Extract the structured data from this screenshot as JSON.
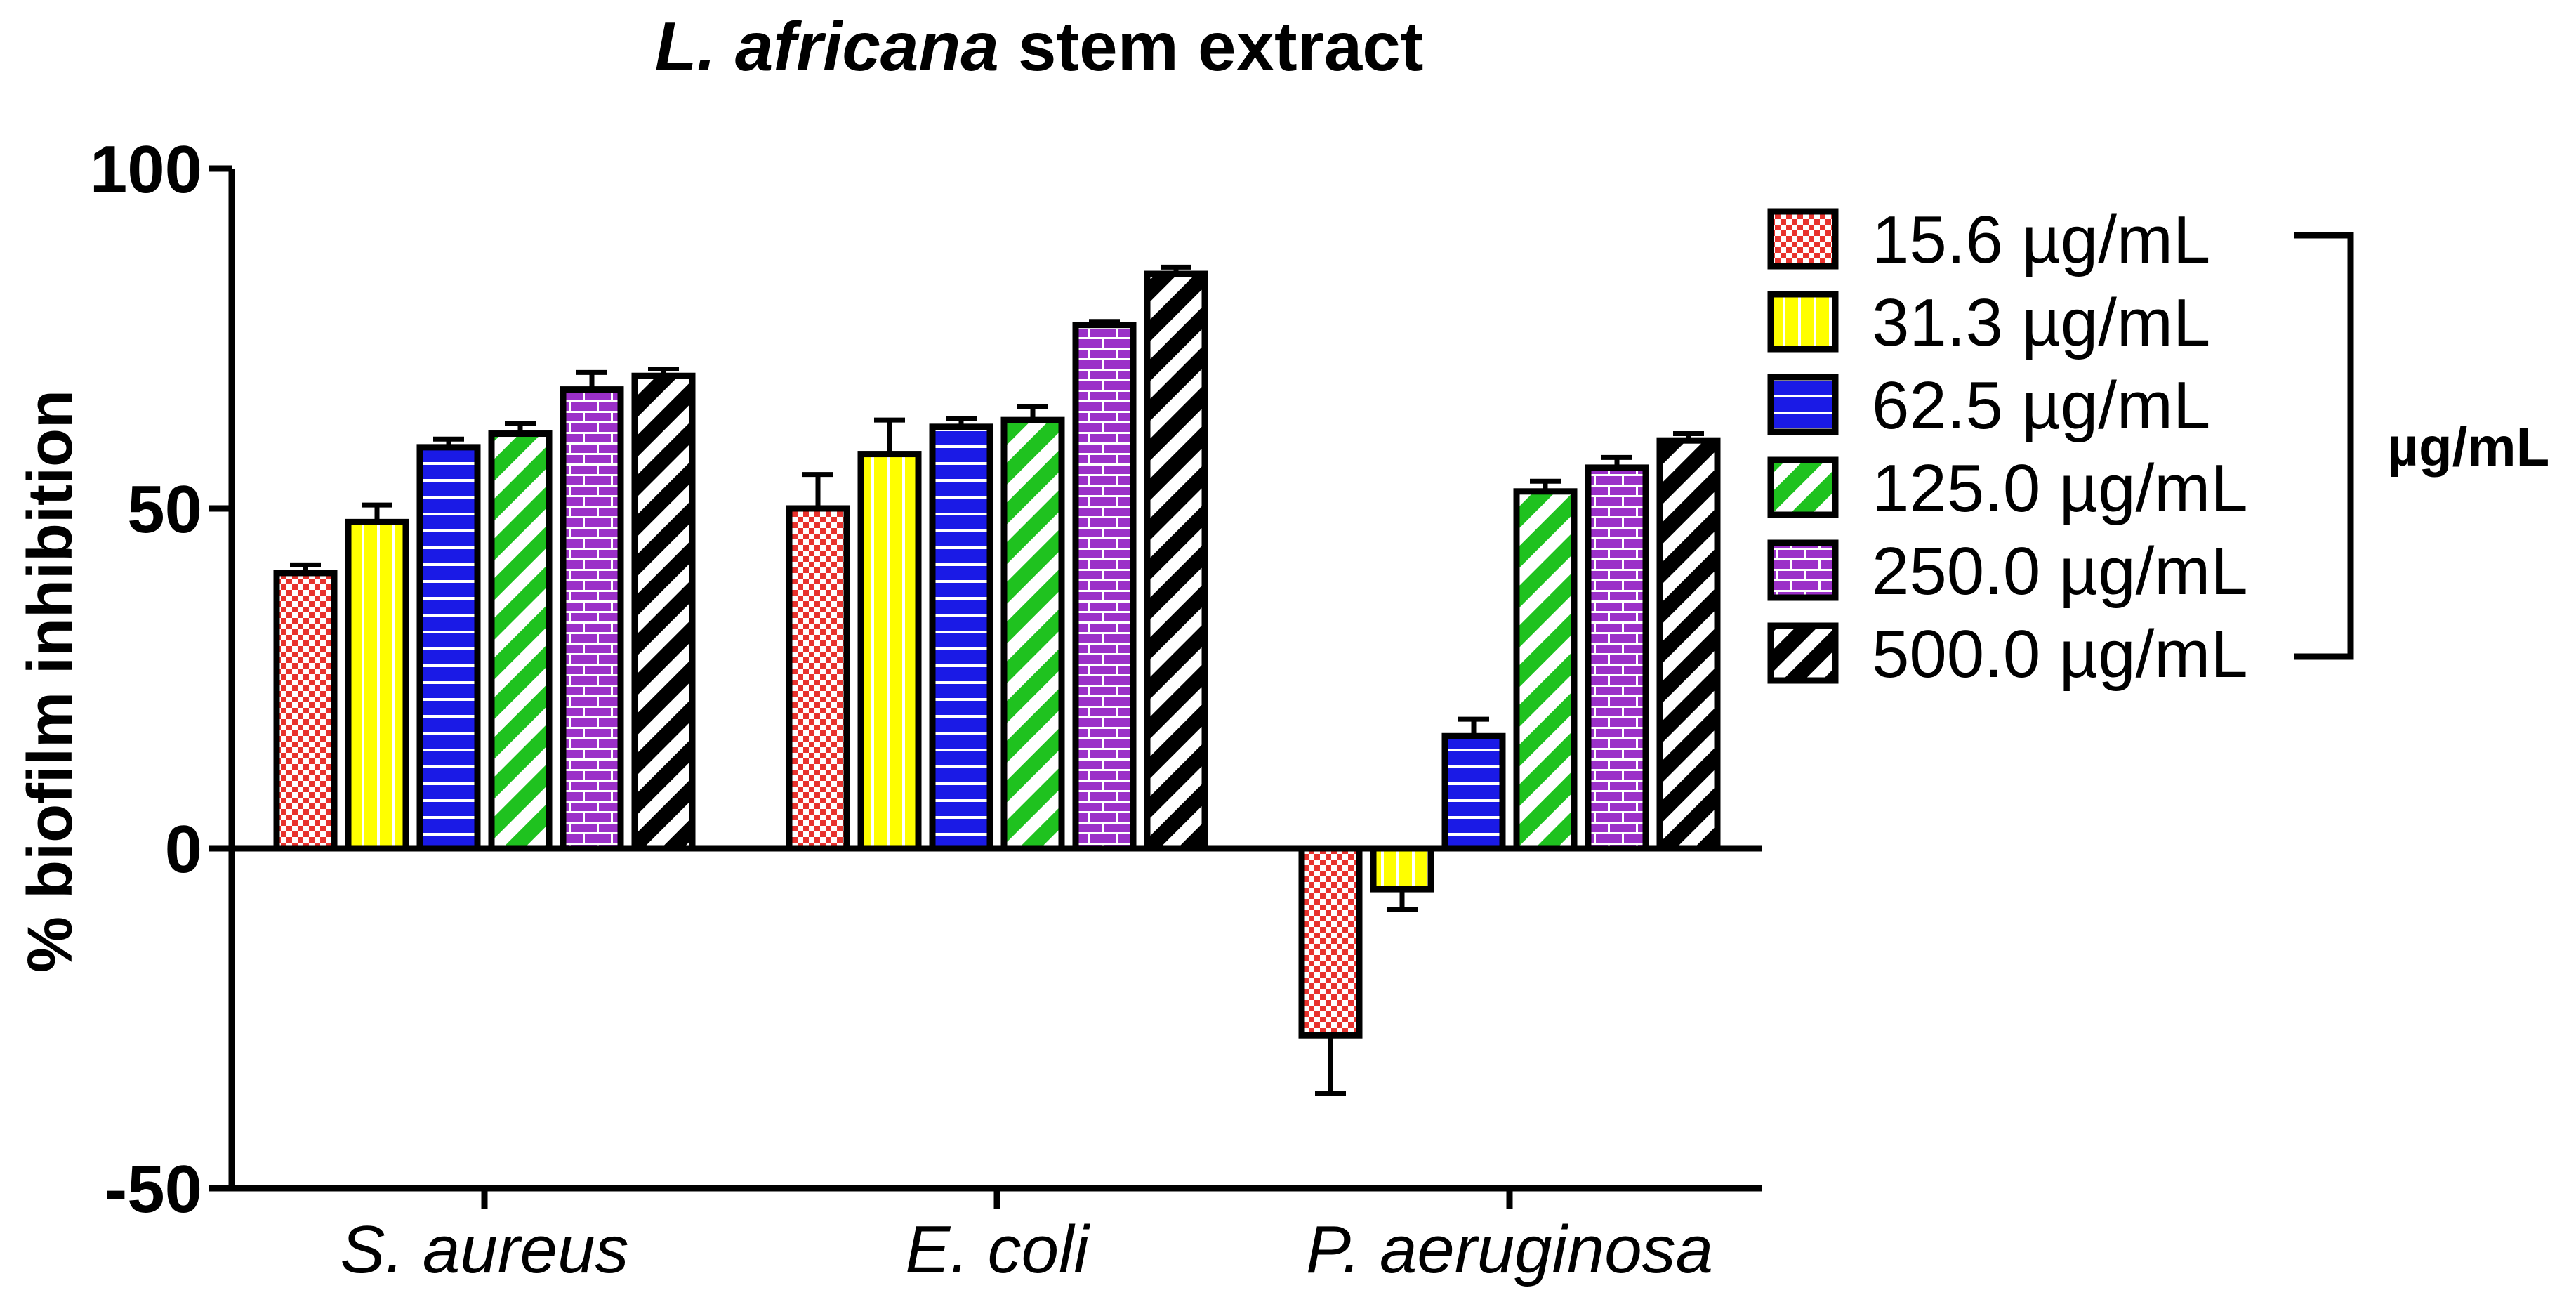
{
  "chart_data": {
    "type": "bar",
    "title_italic": "L. africana",
    "title_rest": " stem extract",
    "ylabel": "% biofilm inhibition",
    "xlabel": "",
    "ylim": [
      -50,
      100
    ],
    "yticks": [
      -50,
      0,
      50,
      100
    ],
    "categories": [
      "S. aureus",
      "E. coli",
      "P. aeruginosa"
    ],
    "series": [
      {
        "name": "15.6 µg/mL",
        "values": [
          40.5,
          50.0,
          -27.5
        ],
        "errors": [
          1.2,
          5.0,
          8.5
        ],
        "color": "#e8332e",
        "pattern": "checker"
      },
      {
        "name": "31.3 µg/mL",
        "values": [
          48.0,
          58.0,
          -6.0
        ],
        "errors": [
          2.5,
          5.0,
          3.0
        ],
        "color": "#ffff00",
        "pattern": "vlines"
      },
      {
        "name": "62.5 µg/mL",
        "values": [
          59.0,
          62.0,
          16.5
        ],
        "errors": [
          1.2,
          1.2,
          2.5
        ],
        "color": "#1a1ae6",
        "pattern": "hlines"
      },
      {
        "name": "125.0 µg/mL",
        "values": [
          61.0,
          63.0,
          52.5
        ],
        "errors": [
          1.5,
          2.0,
          1.5
        ],
        "color": "#1fc21f",
        "pattern": "diag"
      },
      {
        "name": "250.0 µg/mL",
        "values": [
          67.5,
          77.0,
          56.0
        ],
        "errors": [
          2.5,
          0.5,
          1.5
        ],
        "color": "#9b30c8",
        "pattern": "brick"
      },
      {
        "name": "500.0 µg/mL",
        "values": [
          69.5,
          84.5,
          60.0
        ],
        "errors": [
          1.0,
          1.0,
          1.0
        ],
        "color": "#000000",
        "pattern": "bdiag"
      }
    ],
    "legend_position": "right",
    "legend_bracket_label": "µg/mL"
  }
}
